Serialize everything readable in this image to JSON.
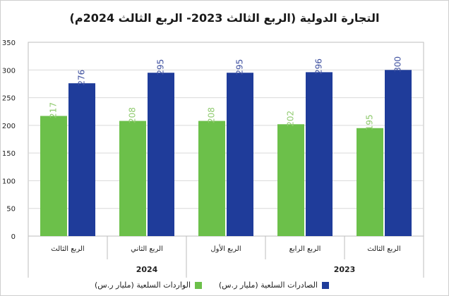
{
  "chart_data": {
    "type": "bar",
    "title": "التجارة الدولية (الربع الثالث 2023- الربع الثالث 2024م)",
    "categories": [
      "الربع الثالث",
      "الربع الرابع",
      "الربع الأول",
      "الربع الثاني",
      "الربع الثالث"
    ],
    "groups": [
      {
        "label": "2023",
        "categories": [
          0,
          1
        ]
      },
      {
        "label": "2024",
        "categories": [
          2,
          3,
          4
        ]
      }
    ],
    "series": [
      {
        "name": "الواردات السلعية (مليار ر.س)",
        "color": "#6cc04a",
        "values": [
          195,
          202,
          208,
          208,
          217
        ]
      },
      {
        "name": "الصادرات السلعية (مليار ر.س)",
        "color": "#1f3c9a",
        "values": [
          300,
          296,
          295,
          295,
          276
        ]
      }
    ],
    "ylim": [
      0,
      350
    ],
    "yticks": [
      0,
      50,
      100,
      150,
      200,
      250,
      300,
      350
    ],
    "grid": true,
    "legend_position": "bottom"
  },
  "colors": {
    "imports_label": "#8fca6e",
    "exports_label": "#3f51a0"
  }
}
